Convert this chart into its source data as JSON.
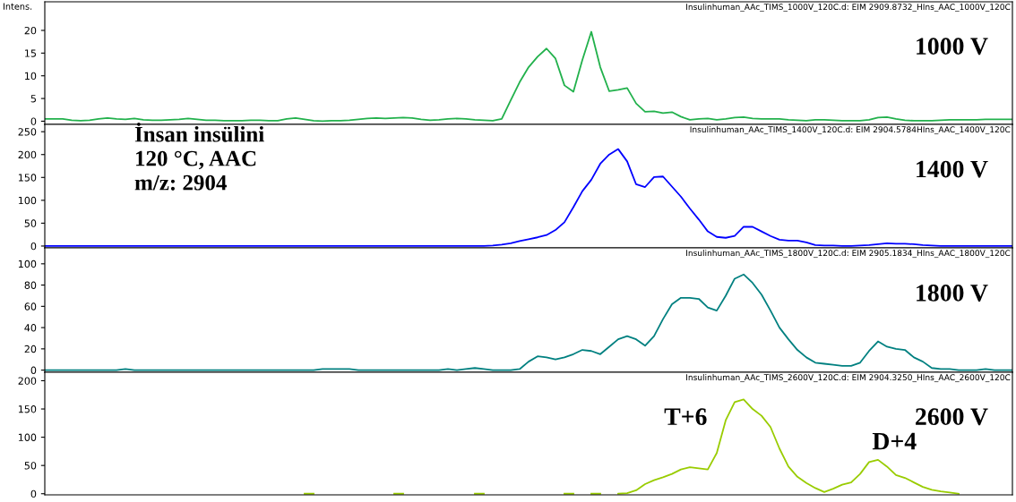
{
  "chart_data": [
    {
      "type": "line",
      "title": "1000 V",
      "subtitle": "Insulinhuman_AAc_TIMS_1000V_120C.d: EIM 2909.8732_HIns_AAC_1000V_120C",
      "ylabel": "Intens.",
      "tick_labels": "y",
      "grid": false,
      "legend": false,
      "marker": "none",
      "line_style": "solid",
      "ylim": [
        -0.7,
        26.3
      ],
      "yticks": [
        0,
        5,
        10,
        15,
        20
      ],
      "categories": [
        null,
        null,
        null,
        null,
        null,
        null,
        null,
        null,
        null,
        null,
        null,
        null,
        null,
        null,
        null,
        null,
        null,
        null,
        null,
        null,
        null,
        null,
        null,
        null,
        null,
        null,
        null,
        null,
        null,
        null,
        null,
        null,
        null,
        null,
        null,
        null,
        null,
        null,
        null,
        null,
        null,
        null,
        null,
        null,
        null,
        null,
        null,
        null,
        null,
        null,
        null,
        null,
        null,
        null,
        null,
        null,
        null,
        null,
        null,
        null,
        null,
        null,
        null,
        null,
        null,
        null,
        null,
        null,
        null,
        null,
        null,
        null,
        null,
        null,
        null,
        null,
        null,
        null,
        null,
        null,
        null,
        null,
        null,
        null,
        null,
        null,
        null,
        null,
        null,
        null,
        null,
        null,
        null,
        null,
        null,
        null,
        null,
        null,
        null,
        null,
        null,
        null,
        null,
        null,
        null,
        null,
        null,
        null,
        null
      ],
      "series": [
        {
          "color": "#22b14c",
          "values": [
            0.5,
            0.5,
            0.5,
            0.2,
            0.1,
            0.2,
            0.5,
            0.7,
            0.5,
            0.4,
            0.6,
            0.3,
            0.2,
            0.2,
            0.3,
            0.4,
            0.6,
            0.4,
            0.2,
            0.2,
            0.1,
            0.1,
            0.1,
            0.2,
            0.2,
            0.1,
            0.1,
            0.5,
            0.7,
            0.4,
            0.1,
            0.0,
            0.1,
            0.1,
            0.2,
            0.4,
            0.6,
            0.7,
            0.6,
            0.7,
            0.8,
            0.7,
            0.4,
            0.2,
            0.3,
            0.5,
            0.6,
            0.5,
            0.3,
            0.2,
            0.1,
            0.5,
            4.6,
            8.6,
            11.9,
            14.2,
            16,
            13.8,
            7.9,
            6.5,
            13.5,
            19.7,
            11.9,
            6.6,
            6.9,
            7.3,
            3.9,
            2.1,
            2.2,
            1.8,
            2.0,
            1.0,
            0.3,
            0.5,
            0.6,
            0.3,
            0.5,
            0.8,
            0.9,
            0.6,
            0.5,
            0.5,
            0.5,
            0.3,
            0.2,
            0.1,
            0.3,
            0.3,
            0.2,
            0.1,
            0.1,
            0.1,
            0.3,
            0.8,
            0.9,
            0.5,
            0.2,
            0.1,
            0.1,
            0.1,
            0.2,
            0.3,
            0.3,
            0.3,
            0.3,
            0.4,
            0.4,
            0.4,
            0.4
          ]
        }
      ]
    },
    {
      "type": "line",
      "title": "1400 V",
      "subtitle": "Insulinhuman_AAc_TIMS_1400V_120C.d: EIM 2904.5784HIns_AAC_1400V_120C",
      "annotations": [
        "İnsan insülini\n120 °C, AAC\nm/z: 2904"
      ],
      "tick_labels": "y",
      "grid": false,
      "legend": false,
      "marker": "none",
      "line_style": "solid",
      "ylim": [
        -4,
        266
      ],
      "yticks": [
        0,
        50,
        100,
        150,
        200,
        250
      ],
      "categories": [
        null,
        null,
        null,
        null,
        null,
        null,
        null,
        null,
        null,
        null,
        null,
        null,
        null,
        null,
        null,
        null,
        null,
        null,
        null,
        null,
        null,
        null,
        null,
        null,
        null,
        null,
        null,
        null,
        null,
        null,
        null,
        null,
        null,
        null,
        null,
        null,
        null,
        null,
        null,
        null,
        null,
        null,
        null,
        null,
        null,
        null,
        null,
        null,
        null,
        null,
        null,
        null,
        null,
        null,
        null,
        null,
        null,
        null,
        null,
        null,
        null,
        null,
        null,
        null,
        null,
        null,
        null,
        null,
        null,
        null,
        null,
        null,
        null,
        null,
        null,
        null,
        null,
        null,
        null,
        null,
        null,
        null,
        null,
        null,
        null,
        null,
        null,
        null,
        null,
        null,
        null,
        null,
        null,
        null,
        null,
        null,
        null,
        null,
        null,
        null,
        null,
        null,
        null,
        null,
        null,
        null,
        null,
        null,
        null
      ],
      "series": [
        {
          "color": "#0000ff",
          "values": [
            0,
            0,
            0,
            0,
            0,
            0,
            0,
            0,
            0,
            0,
            0,
            0,
            0,
            0,
            0,
            0,
            0,
            0,
            0,
            0,
            0,
            0,
            0,
            0,
            0,
            0,
            0,
            0,
            0,
            0,
            0,
            0,
            0,
            0,
            0,
            0,
            0,
            0,
            0,
            0,
            0,
            0,
            0,
            0,
            0,
            0,
            0,
            0,
            0,
            0,
            1,
            3,
            6,
            11,
            15,
            19,
            24,
            35,
            52,
            85,
            120,
            145,
            180,
            200,
            212,
            185,
            135,
            129,
            151,
            152,
            130,
            108,
            82,
            58,
            32,
            20,
            18,
            22,
            42,
            42,
            32,
            22,
            14,
            12,
            12,
            8,
            2,
            1,
            1,
            0,
            0,
            1,
            2,
            4,
            6,
            5,
            5,
            4,
            2,
            1,
            0,
            0,
            0,
            0,
            0,
            0,
            0,
            0,
            0
          ]
        }
      ]
    },
    {
      "type": "line",
      "title": "1800 V",
      "subtitle": "Insulinhuman_AAc_TIMS_1800V_120C.d: EIM 2905.1834_HIns_AAC_1800V_120C",
      "tick_labels": "y",
      "grid": false,
      "legend": false,
      "marker": "none",
      "line_style": "solid",
      "ylim": [
        -2,
        115
      ],
      "yticks": [
        0,
        20,
        40,
        60,
        80,
        100
      ],
      "categories": [
        null,
        null,
        null,
        null,
        null,
        null,
        null,
        null,
        null,
        null,
        null,
        null,
        null,
        null,
        null,
        null,
        null,
        null,
        null,
        null,
        null,
        null,
        null,
        null,
        null,
        null,
        null,
        null,
        null,
        null,
        null,
        null,
        null,
        null,
        null,
        null,
        null,
        null,
        null,
        null,
        null,
        null,
        null,
        null,
        null,
        null,
        null,
        null,
        null,
        null,
        null,
        null,
        null,
        null,
        null,
        null,
        null,
        null,
        null,
        null,
        null,
        null,
        null,
        null,
        null,
        null,
        null,
        null,
        null,
        null,
        null,
        null,
        null,
        null,
        null,
        null,
        null,
        null,
        null,
        null,
        null,
        null,
        null,
        null,
        null,
        null,
        null,
        null,
        null,
        null,
        null,
        null,
        null,
        null,
        null,
        null,
        null,
        null,
        null,
        null,
        null,
        null,
        null,
        null,
        null,
        null,
        null,
        null,
        null
      ],
      "series": [
        {
          "color": "#008080",
          "values": [
            0,
            0,
            0,
            0,
            0,
            0,
            0,
            0,
            0,
            1,
            0,
            0,
            0,
            0,
            0,
            0,
            0,
            0,
            0,
            0,
            0,
            0,
            0,
            0,
            0,
            0,
            0,
            0,
            0,
            0,
            0,
            1,
            1,
            1,
            1,
            0,
            0,
            0,
            0,
            0,
            0,
            0,
            0,
            0,
            0,
            1,
            0,
            1,
            2,
            1,
            0,
            0,
            0,
            1,
            8,
            13,
            12,
            10,
            12,
            15,
            19,
            18,
            15,
            22,
            29,
            32,
            29,
            23,
            32,
            48,
            62,
            68,
            68,
            67,
            59,
            56,
            70,
            86,
            90,
            82,
            71,
            56,
            40,
            29,
            19,
            12,
            7,
            6,
            5,
            4,
            4,
            7,
            18,
            27,
            22,
            20,
            19,
            12,
            8,
            2,
            1,
            1,
            0,
            0,
            0,
            1,
            0,
            0,
            0
          ]
        }
      ]
    },
    {
      "type": "line",
      "title": "2600 V",
      "subtitle": "Insulinhuman_AAc_TIMS_2600V_120C.d: EIM 2904.3250_HIns_AAC_2600V_120C",
      "annotations": [
        "T+6",
        "D+4"
      ],
      "tick_labels": "y",
      "grid": false,
      "legend": false,
      "marker": "none",
      "line_style": "solid",
      "ylim": [
        -2,
        215
      ],
      "yticks": [
        0,
        50,
        100,
        150,
        200
      ],
      "categories": [
        null,
        null,
        null,
        null,
        null,
        null,
        null,
        null,
        null,
        null,
        null,
        null,
        null,
        null,
        null,
        null,
        null,
        null,
        null,
        null,
        null,
        null,
        null,
        null,
        null,
        null,
        null,
        null,
        null,
        null,
        null,
        null,
        null,
        null,
        null,
        null,
        null,
        null,
        null,
        null,
        null,
        null,
        null,
        null,
        null,
        null,
        null,
        null,
        null,
        null,
        null,
        null,
        null,
        null,
        null,
        null,
        null,
        null,
        null,
        null,
        null,
        null,
        null,
        null,
        null,
        null,
        null,
        null,
        null,
        null,
        null,
        null,
        null,
        null,
        null,
        null,
        null,
        null,
        null,
        null,
        null,
        null,
        null,
        null,
        null,
        null,
        null,
        null,
        null,
        null,
        null,
        null,
        null,
        null,
        null,
        null,
        null,
        null,
        null,
        null,
        null,
        null,
        null,
        null,
        null,
        null,
        null,
        null,
        null
      ],
      "series": [
        {
          "color": "#99cc00",
          "values": [
            null,
            null,
            null,
            null,
            null,
            null,
            null,
            null,
            null,
            null,
            null,
            null,
            null,
            null,
            null,
            null,
            null,
            null,
            null,
            null,
            null,
            null,
            null,
            null,
            null,
            null,
            null,
            null,
            null,
            0,
            0,
            null,
            null,
            null,
            null,
            null,
            null,
            null,
            null,
            0,
            0,
            null,
            null,
            null,
            null,
            null,
            null,
            null,
            0,
            0,
            null,
            null,
            null,
            null,
            null,
            null,
            null,
            null,
            0,
            0,
            null,
            0,
            0,
            null,
            0,
            1,
            6,
            17,
            24,
            29,
            35,
            43,
            47,
            45,
            43,
            72,
            130,
            162,
            167,
            150,
            138,
            118,
            80,
            48,
            30,
            19,
            10,
            3,
            9,
            16,
            20,
            35,
            56,
            60,
            48,
            33,
            28,
            20,
            12,
            7,
            4,
            2,
            0,
            null,
            null,
            null,
            null,
            null,
            null
          ]
        }
      ]
    }
  ]
}
